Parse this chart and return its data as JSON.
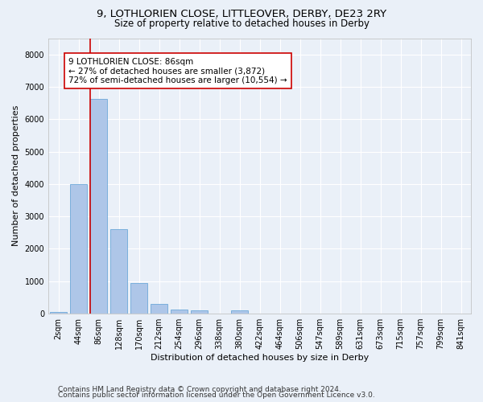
{
  "title_line1": "9, LOTHLORIEN CLOSE, LITTLEOVER, DERBY, DE23 2RY",
  "title_line2": "Size of property relative to detached houses in Derby",
  "xlabel": "Distribution of detached houses by size in Derby",
  "ylabel": "Number of detached properties",
  "categories": [
    "2sqm",
    "44sqm",
    "86sqm",
    "128sqm",
    "170sqm",
    "212sqm",
    "254sqm",
    "296sqm",
    "338sqm",
    "380sqm",
    "422sqm",
    "464sqm",
    "506sqm",
    "547sqm",
    "589sqm",
    "631sqm",
    "673sqm",
    "715sqm",
    "757sqm",
    "799sqm",
    "841sqm"
  ],
  "values": [
    60,
    4000,
    6620,
    2600,
    950,
    310,
    125,
    100,
    0,
    95,
    0,
    0,
    0,
    0,
    0,
    0,
    0,
    0,
    0,
    0,
    0
  ],
  "bar_color": "#aec6e8",
  "bar_edge_color": "#5a9fd4",
  "highlight_index": 2,
  "highlight_line_color": "#cc0000",
  "annotation_line1": "9 LOTHLORIEN CLOSE: 86sqm",
  "annotation_line2": "← 27% of detached houses are smaller (3,872)",
  "annotation_line3": "72% of semi-detached houses are larger (10,554) →",
  "annotation_box_color": "#ffffff",
  "annotation_box_edge_color": "#cc0000",
  "ylim": [
    0,
    8500
  ],
  "yticks": [
    0,
    1000,
    2000,
    3000,
    4000,
    5000,
    6000,
    7000,
    8000
  ],
  "background_color": "#eaf0f8",
  "grid_color": "#ffffff",
  "footer_line1": "Contains HM Land Registry data © Crown copyright and database right 2024.",
  "footer_line2": "Contains public sector information licensed under the Open Government Licence v3.0.",
  "title_fontsize": 9.5,
  "subtitle_fontsize": 8.5,
  "axis_label_fontsize": 8,
  "tick_fontsize": 7,
  "annotation_fontsize": 7.5,
  "footer_fontsize": 6.5
}
